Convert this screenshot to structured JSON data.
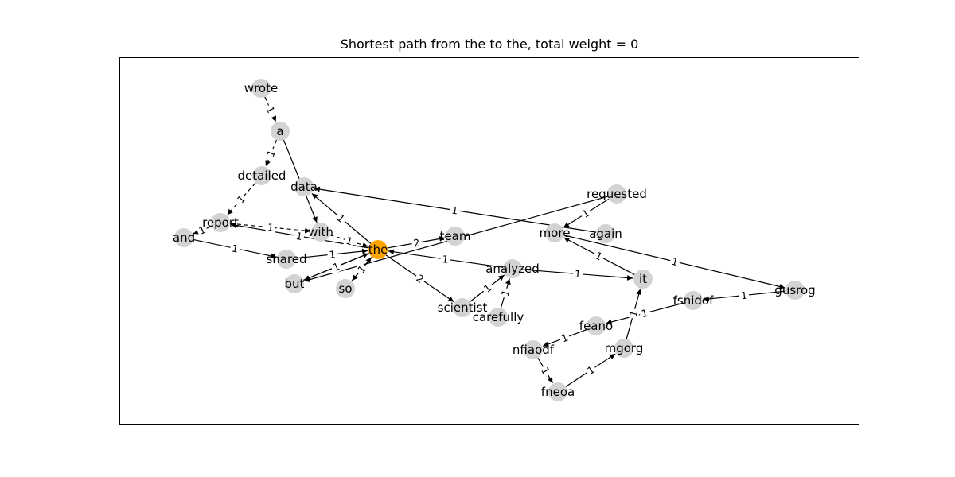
{
  "title": "Shortest path from the to the, total weight = 0",
  "colors": {
    "node": "#d3d3d3",
    "highlight": "#ffa500",
    "edge": "#000000",
    "frame": "#000000"
  },
  "nodes": [
    {
      "id": "wrote",
      "label": "wrote"
    },
    {
      "id": "a",
      "label": "a"
    },
    {
      "id": "detailed",
      "label": "detailed"
    },
    {
      "id": "data",
      "label": "data"
    },
    {
      "id": "report",
      "label": "report"
    },
    {
      "id": "and",
      "label": "and"
    },
    {
      "id": "with",
      "label": "with"
    },
    {
      "id": "shared",
      "label": "shared"
    },
    {
      "id": "the",
      "label": "the",
      "highlight": true
    },
    {
      "id": "but",
      "label": "but"
    },
    {
      "id": "so",
      "label": "so"
    },
    {
      "id": "team",
      "label": "team"
    },
    {
      "id": "requested",
      "label": "requested"
    },
    {
      "id": "more",
      "label": "more"
    },
    {
      "id": "again",
      "label": "again"
    },
    {
      "id": "analyzed",
      "label": "analyzed"
    },
    {
      "id": "scientist",
      "label": "scientist"
    },
    {
      "id": "carefully",
      "label": "carefully"
    },
    {
      "id": "it",
      "label": "it"
    },
    {
      "id": "fsnidof",
      "label": "fsnidof"
    },
    {
      "id": "gusrog",
      "label": "gusrog"
    },
    {
      "id": "feano",
      "label": "feano"
    },
    {
      "id": "nfiaodf",
      "label": "nfiaodf"
    },
    {
      "id": "mgorg",
      "label": "mgorg"
    },
    {
      "id": "fneoa",
      "label": "fneoa"
    }
  ],
  "edges": [
    {
      "source": "wrote",
      "target": "a",
      "weight": "1",
      "dashed": true
    },
    {
      "source": "a",
      "target": "detailed",
      "weight": "1",
      "dashed": true
    },
    {
      "source": "detailed",
      "target": "report",
      "weight": "1",
      "dashed": true
    },
    {
      "source": "report",
      "target": "with",
      "weight": "1",
      "dashed": true
    },
    {
      "source": "with",
      "target": "the",
      "weight": "1",
      "dashed": true
    },
    {
      "source": "the",
      "target": "so",
      "weight": "1",
      "dashed": true
    },
    {
      "source": "so",
      "target": "the",
      "weight": "1",
      "dashed": true
    },
    {
      "source": "a",
      "target": "with",
      "weight": "",
      "dashed": false
    },
    {
      "source": "the",
      "target": "data",
      "weight": "1",
      "dashed": false
    },
    {
      "source": "the",
      "target": "report",
      "weight": "1",
      "dashed": false
    },
    {
      "source": "and",
      "target": "shared",
      "weight": "1",
      "dashed": false
    },
    {
      "source": "report",
      "target": "and",
      "weight": "1",
      "dashed": false
    },
    {
      "source": "shared",
      "target": "the",
      "weight": "1",
      "dashed": false
    },
    {
      "source": "the",
      "target": "but",
      "weight": "1",
      "dashed": false
    },
    {
      "source": "but",
      "target": "the",
      "weight": "1",
      "dashed": false
    },
    {
      "source": "the",
      "target": "team",
      "weight": "2",
      "dashed": false
    },
    {
      "source": "requested",
      "target": "but",
      "weight": "1",
      "dashed": false
    },
    {
      "source": "the",
      "target": "scientist",
      "weight": "2",
      "dashed": false
    },
    {
      "source": "analyzed",
      "target": "the",
      "weight": "1",
      "dashed": false
    },
    {
      "source": "analyzed",
      "target": "it",
      "weight": "1",
      "dashed": false
    },
    {
      "source": "scientist",
      "target": "analyzed",
      "weight": "1",
      "dashed": false
    },
    {
      "source": "carefully",
      "target": "analyzed",
      "weight": "1",
      "dashed": false
    },
    {
      "source": "again",
      "target": "data",
      "weight": "1",
      "dashed": false
    },
    {
      "source": "requested",
      "target": "more",
      "weight": "1",
      "dashed": false
    },
    {
      "source": "it",
      "target": "more",
      "weight": "1",
      "dashed": false
    },
    {
      "source": "more",
      "target": "gusrog",
      "weight": "1",
      "dashed": false
    },
    {
      "source": "gusrog",
      "target": "fsnidof",
      "weight": "1",
      "dashed": false
    },
    {
      "source": "fsnidof",
      "target": "feano",
      "weight": "1",
      "dashed": false
    },
    {
      "source": "feano",
      "target": "nfiaodf",
      "weight": "1",
      "dashed": false
    },
    {
      "source": "nfiaodf",
      "target": "fneoa",
      "weight": "1",
      "dashed": false
    },
    {
      "source": "fneoa",
      "target": "mgorg",
      "weight": "1",
      "dashed": false
    },
    {
      "source": "mgorg",
      "target": "it",
      "weight": "1",
      "dashed": false
    }
  ]
}
